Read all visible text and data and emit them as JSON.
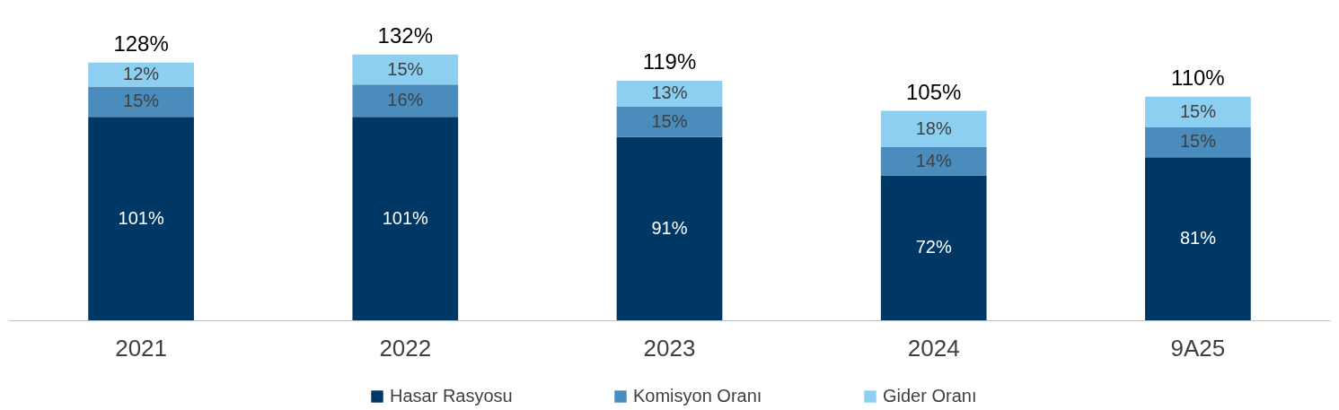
{
  "chart_data": {
    "type": "bar",
    "stacked": true,
    "legend": "bottom",
    "grid": false,
    "categories": [
      "2021",
      "2022",
      "2023",
      "2024",
      "9A25"
    ],
    "series": [
      {
        "name": "Hasar Rasyosu",
        "color": "#003865",
        "values": [
          101,
          101,
          91,
          72,
          81
        ],
        "value_labels": [
          "101%",
          "101%",
          "91%",
          "72%",
          "81%"
        ]
      },
      {
        "name": "Komisyon Oranı",
        "color": "#4a8cbb",
        "values": [
          15,
          16,
          15,
          14,
          15
        ],
        "value_labels": [
          "15%",
          "16%",
          "15%",
          "14%",
          "15%"
        ]
      },
      {
        "name": "Gider Oranı",
        "color": "#8dcff0",
        "values": [
          12,
          15,
          13,
          18,
          15
        ],
        "value_labels": [
          "12%",
          "15%",
          "13%",
          "18%",
          "15%"
        ]
      }
    ],
    "totals": [
      "128%",
      "132%",
      "119%",
      "105%",
      "110%"
    ]
  }
}
